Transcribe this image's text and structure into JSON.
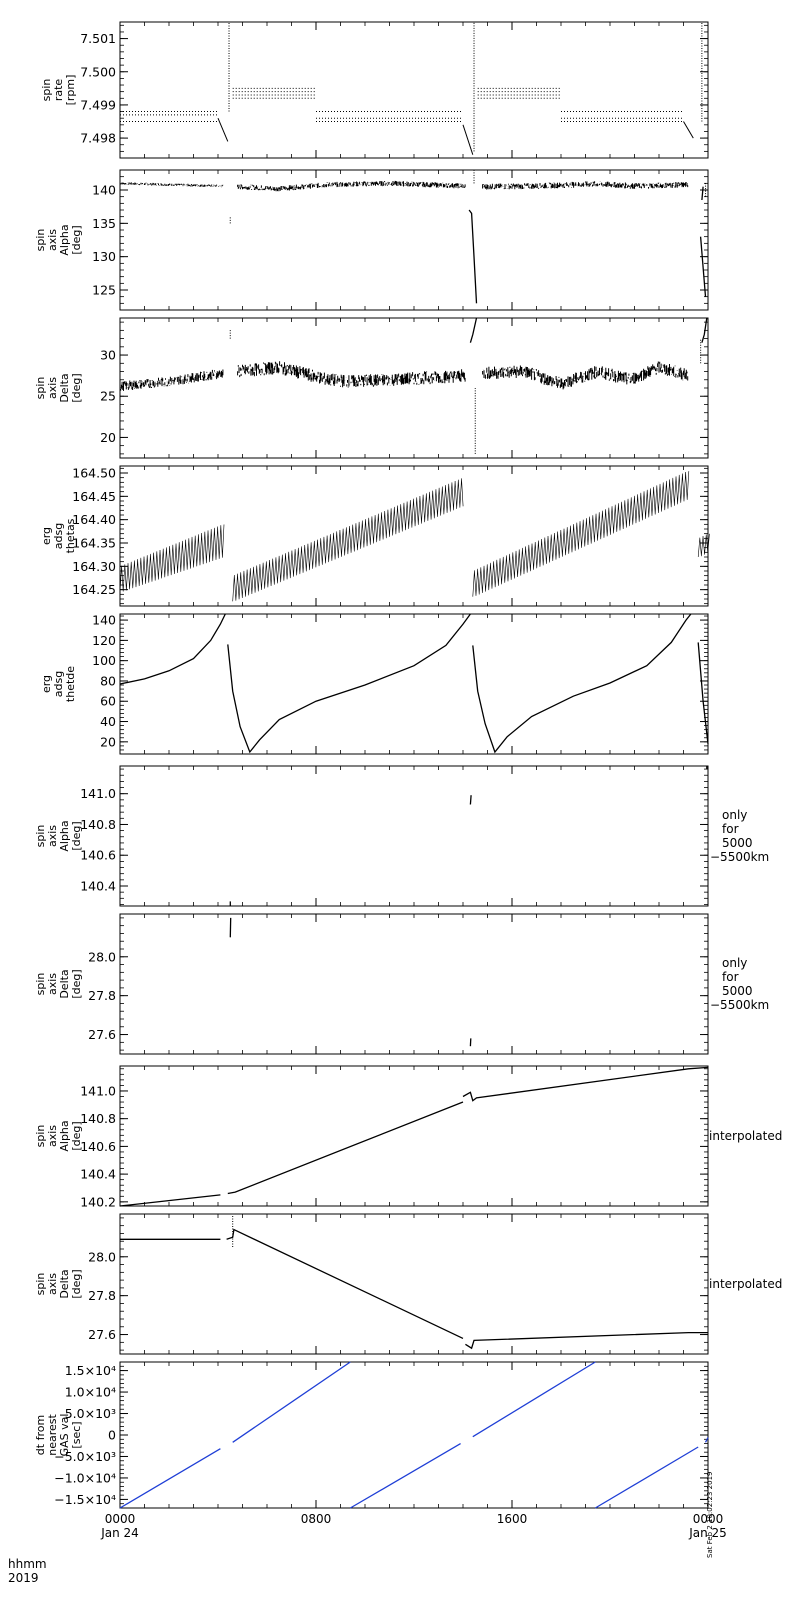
{
  "colors": {
    "trace": "#000000",
    "dt_trace": "#1f3fd6",
    "background": "#ffffff"
  },
  "x_axis": {
    "range_hours": [
      0,
      24
    ],
    "tick_hours": [
      0,
      8,
      16,
      24
    ],
    "labels_top": [
      "0000",
      "0800",
      "1600",
      "0000"
    ],
    "labels_bottom": [
      "Jan 24",
      "",
      "",
      "Jan 25"
    ],
    "corner_top": "hhmm",
    "corner_bottom": "2019",
    "minor_per_major": 8
  },
  "stamp": "Sat Feb  2 10:02:23 2019",
  "chart_data": [
    {
      "type": "scatter",
      "ylabel": [
        "spin",
        "rate",
        "[rpm]"
      ],
      "ylim": [
        7.4974,
        7.5015
      ],
      "yticks": [
        7.498,
        7.499,
        7.5,
        7.501
      ],
      "yticklabels": [
        "7.498",
        "7.499",
        "7.500",
        "7.501"
      ],
      "side_label": [],
      "style": "bands",
      "segments": [
        {
          "x": [
            0.0,
            4.0
          ],
          "levels": [
            7.4985,
            7.4987,
            7.4988
          ],
          "end": [
            [
              4.0,
              7.4986
            ],
            [
              4.4,
              7.4979
            ]
          ]
        },
        {
          "x": [
            4.6,
            8.0
          ],
          "levels": [
            7.4992,
            7.4993,
            7.4994,
            7.4995
          ]
        },
        {
          "x": [
            8.0,
            14.0
          ],
          "levels": [
            7.4985,
            7.4986,
            7.4988
          ],
          "end": [
            [
              14.0,
              7.4984
            ],
            [
              14.4,
              7.4975
            ]
          ]
        },
        {
          "x": [
            14.6,
            18.0
          ],
          "levels": [
            7.4992,
            7.4993,
            7.4994,
            7.4995
          ]
        },
        {
          "x": [
            18.0,
            23.0
          ],
          "levels": [
            7.4985,
            7.4986,
            7.4988
          ],
          "end": [
            [
              23.0,
              7.4985
            ],
            [
              23.4,
              7.498
            ]
          ]
        }
      ],
      "spikes": [
        [
          4.45,
          7.4988,
          7.5015
        ],
        [
          14.45,
          7.4976,
          7.5015
        ],
        [
          23.75,
          7.4985,
          7.5015
        ]
      ]
    },
    {
      "type": "scatter",
      "ylabel": [
        "spin",
        "axis",
        "Alpha",
        "[deg]"
      ],
      "ylim": [
        122,
        143
      ],
      "yticks": [
        125,
        130,
        135,
        140
      ],
      "yticklabels": [
        "125",
        "130",
        "135",
        "140"
      ],
      "side_label": [],
      "style": "noisy",
      "segments": [
        {
          "x": [
            0.0,
            4.2
          ],
          "y": [
            [
              0,
              141.0
            ],
            [
              2,
              140.8
            ],
            [
              4.2,
              140.6
            ]
          ],
          "noise": 0.4
        },
        {
          "x": [
            4.8,
            14.1
          ],
          "y": [
            [
              4.8,
              140.5
            ],
            [
              6.5,
              140.2
            ],
            [
              8.5,
              140.8
            ],
            [
              11,
              141.0
            ],
            [
              14.1,
              140.6
            ]
          ],
          "noise": 0.8
        },
        {
          "x": [
            14.8,
            23.2
          ],
          "y": [
            [
              14.8,
              140.5
            ],
            [
              17,
              140.6
            ],
            [
              19.5,
              140.9
            ],
            [
              21,
              140.6
            ],
            [
              23.2,
              140.8
            ]
          ],
          "noise": 0.9
        }
      ],
      "lines": [
        [
          [
            14.25,
            137.0
          ],
          [
            14.35,
            136.5
          ],
          [
            14.45,
            130.0
          ],
          [
            14.55,
            123.0
          ]
        ],
        [
          [
            23.7,
            133.0
          ],
          [
            23.9,
            124.0
          ]
        ],
        [
          [
            23.75,
            138.5
          ],
          [
            23.8,
            140.5
          ]
        ]
      ],
      "spikes": [
        [
          4.5,
          135.0,
          136.0
        ],
        [
          14.45,
          141.0,
          143.0
        ],
        [
          23.9,
          139.0,
          141.0
        ]
      ]
    },
    {
      "type": "scatter",
      "ylabel": [
        "spin",
        "axis",
        "Delta",
        "[deg]"
      ],
      "ylim": [
        17.5,
        34.5
      ],
      "yticks": [
        20,
        25,
        30
      ],
      "yticklabels": [
        "20",
        "25",
        "30"
      ],
      "side_label": [],
      "style": "noisy",
      "segments": [
        {
          "x": [
            0.0,
            4.2
          ],
          "y": [
            [
              0,
              26.2
            ],
            [
              2,
              26.8
            ],
            [
              4.2,
              27.8
            ]
          ],
          "noise": 1.2
        },
        {
          "x": [
            4.8,
            14.1
          ],
          "y": [
            [
              4.8,
              28.0
            ],
            [
              6.5,
              28.5
            ],
            [
              8.5,
              27.0
            ],
            [
              9.5,
              26.8
            ],
            [
              11,
              27.0
            ],
            [
              14.1,
              27.5
            ]
          ],
          "noise": 1.6
        },
        {
          "x": [
            14.8,
            23.2
          ],
          "y": [
            [
              14.8,
              27.8
            ],
            [
              16.5,
              28.0
            ],
            [
              18,
              26.5
            ],
            [
              19.5,
              28.0
            ],
            [
              20.8,
              27.0
            ],
            [
              22,
              28.5
            ],
            [
              23.2,
              27.5
            ]
          ],
          "noise": 1.6
        }
      ],
      "lines": [
        [
          [
            14.3,
            31.5
          ],
          [
            14.4,
            32.5
          ],
          [
            14.55,
            34.5
          ]
        ],
        [
          [
            23.75,
            31.5
          ],
          [
            23.85,
            32.5
          ],
          [
            23.95,
            34.5
          ]
        ]
      ],
      "spikes": [
        [
          4.5,
          32.0,
          33.2
        ],
        [
          14.5,
          18.0,
          26.0
        ],
        [
          23.7,
          29.0,
          32.0
        ]
      ]
    },
    {
      "type": "scatter",
      "ylabel": [
        "erg",
        "adsg",
        "thetas"
      ],
      "ylim": [
        164.215,
        164.515
      ],
      "yticks": [
        164.25,
        164.3,
        164.35,
        164.4,
        164.45,
        164.5
      ],
      "yticklabels": [
        "164.25",
        "164.30",
        "164.35",
        "164.40",
        "164.45",
        "164.50"
      ],
      "side_label": [],
      "style": "sawband",
      "segments": [
        {
          "x": [
            0.0,
            4.2
          ],
          "low": [
            164.245,
            164.32
          ],
          "high": [
            164.3,
            164.39
          ]
        },
        {
          "x": [
            4.6,
            14.0
          ],
          "low": [
            164.225,
            164.43
          ],
          "high": [
            164.28,
            164.49
          ]
        },
        {
          "x": [
            14.4,
            23.2
          ],
          "low": [
            164.235,
            164.445
          ],
          "high": [
            164.29,
            164.505
          ]
        },
        {
          "x": [
            23.6,
            24.0
          ],
          "low": [
            164.32,
            164.33
          ],
          "high": [
            164.36,
            164.37
          ]
        }
      ]
    },
    {
      "type": "line",
      "ylabel": [
        "erg",
        "adsg",
        "thetde"
      ],
      "ylim": [
        8,
        146
      ],
      "yticks": [
        20,
        40,
        60,
        80,
        100,
        120,
        140
      ],
      "yticklabels": [
        "20",
        "40",
        "60",
        "80",
        "100",
        "120",
        "140"
      ],
      "side_label": [],
      "style": "curve",
      "lines": [
        [
          [
            0,
            77
          ],
          [
            1,
            82
          ],
          [
            2,
            90
          ],
          [
            3,
            102
          ],
          [
            3.7,
            120
          ],
          [
            4.1,
            136
          ],
          [
            4.3,
            146
          ]
        ],
        [
          [
            4.4,
            116
          ],
          [
            4.6,
            70
          ],
          [
            4.9,
            35
          ],
          [
            5.3,
            10
          ],
          [
            5.7,
            22
          ],
          [
            6.5,
            42
          ],
          [
            8.0,
            60
          ],
          [
            10,
            76
          ],
          [
            12,
            95
          ],
          [
            13.3,
            115
          ],
          [
            14.0,
            136
          ],
          [
            14.3,
            146
          ]
        ],
        [
          [
            14.4,
            115
          ],
          [
            14.6,
            70
          ],
          [
            14.9,
            38
          ],
          [
            15.3,
            10
          ],
          [
            15.8,
            25
          ],
          [
            16.8,
            45
          ],
          [
            18.5,
            65
          ],
          [
            20,
            78
          ],
          [
            21.5,
            95
          ],
          [
            22.5,
            118
          ],
          [
            23.1,
            140
          ],
          [
            23.3,
            146
          ]
        ],
        [
          [
            23.6,
            118
          ],
          [
            23.8,
            60
          ],
          [
            24.0,
            18
          ]
        ]
      ]
    },
    {
      "type": "scatter",
      "ylabel": [
        "spin",
        "axis",
        "Alpha",
        "[deg]"
      ],
      "ylim": [
        140.27,
        141.18
      ],
      "yticks": [
        140.4,
        140.6,
        140.8,
        141.0
      ],
      "yticklabels": [
        "140.4",
        "140.6",
        "140.8",
        "141.0"
      ],
      "side_label": [
        "only",
        "for",
        "5000",
        "−5500km"
      ],
      "style": "sparse",
      "lines": [
        [
          [
            4.5,
            140.27
          ],
          [
            4.5,
            140.3
          ]
        ],
        [
          [
            14.3,
            140.93
          ],
          [
            14.33,
            140.99
          ]
        ],
        [
          [
            23.95,
            141.16
          ],
          [
            23.95,
            141.18
          ]
        ]
      ]
    },
    {
      "type": "scatter",
      "ylabel": [
        "spin",
        "axis",
        "Delta",
        "[deg]"
      ],
      "ylim": [
        27.5,
        28.22
      ],
      "yticks": [
        27.6,
        27.8,
        28.0
      ],
      "yticklabels": [
        "27.6",
        "27.8",
        "28.0"
      ],
      "side_label": [
        "only",
        "for",
        "5000",
        "−5500km"
      ],
      "style": "sparse",
      "lines": [
        [
          [
            4.5,
            28.1
          ],
          [
            4.52,
            28.2
          ]
        ],
        [
          [
            14.3,
            27.54
          ],
          [
            14.32,
            27.58
          ]
        ]
      ]
    },
    {
      "type": "line",
      "ylabel": [
        "spin",
        "axis",
        "Alpha",
        "[deg]"
      ],
      "ylim": [
        140.17,
        141.18
      ],
      "yticks": [
        140.2,
        140.4,
        140.6,
        140.8,
        141.0
      ],
      "yticklabels": [
        "140.2",
        "140.4",
        "140.6",
        "140.8",
        "141.0"
      ],
      "side_label": [
        "interpolated"
      ],
      "style": "curve",
      "lines": [
        [
          [
            0,
            140.17
          ],
          [
            4.1,
            140.25
          ]
        ],
        [
          [
            4.4,
            140.26
          ],
          [
            4.7,
            140.27
          ],
          [
            14.0,
            140.92
          ]
        ],
        [
          [
            14.0,
            140.96
          ],
          [
            14.3,
            140.99
          ],
          [
            14.4,
            140.93
          ],
          [
            14.55,
            140.95
          ],
          [
            23.2,
            141.16
          ],
          [
            24,
            141.17
          ]
        ]
      ]
    },
    {
      "type": "line",
      "ylabel": [
        "spin",
        "axis",
        "Delta",
        "[deg]"
      ],
      "ylim": [
        27.5,
        28.22
      ],
      "yticks": [
        27.6,
        27.8,
        28.0
      ],
      "yticklabels": [
        "27.6",
        "27.8",
        "28.0"
      ],
      "side_label": [
        "interpolated"
      ],
      "style": "curve",
      "lines": [
        [
          [
            0,
            28.09
          ],
          [
            4.1,
            28.09
          ]
        ],
        [
          [
            4.35,
            28.09
          ],
          [
            4.6,
            28.1
          ],
          [
            4.65,
            28.14
          ],
          [
            14.0,
            27.58
          ]
        ],
        [
          [
            14.1,
            27.55
          ],
          [
            14.35,
            27.53
          ],
          [
            14.45,
            27.57
          ],
          [
            23.2,
            27.61
          ],
          [
            24,
            27.61
          ]
        ]
      ],
      "spikes": [
        [
          4.6,
          28.05,
          28.22
        ]
      ]
    },
    {
      "type": "line",
      "ylabel": [
        "dt from",
        "nearest",
        "GAS val",
        "[sec]"
      ],
      "ylim": [
        -17000,
        17000
      ],
      "yticks": [
        -15000,
        -10000,
        -5000,
        0,
        5000,
        10000,
        15000
      ],
      "yticklabels": [
        "−1.5×10⁴",
        "−1.0×10⁴",
        "−5.0×10³",
        "0",
        "5.0×10³",
        "1.0×10⁴",
        "1.5×10⁴"
      ],
      "side_label": [],
      "style": "dt",
      "lines": [
        [
          [
            0,
            -17000
          ],
          [
            4.1,
            -3200
          ]
        ],
        [
          [
            4.6,
            -1700
          ],
          [
            9.4,
            17000
          ]
        ],
        [
          [
            9.4,
            -17000
          ],
          [
            13.9,
            -2000
          ]
        ],
        [
          [
            14.4,
            -400
          ],
          [
            19.4,
            17000
          ]
        ],
        [
          [
            19.4,
            -17000
          ],
          [
            23.6,
            -2800
          ]
        ],
        [
          [
            23.9,
            -1700
          ],
          [
            24.0,
            -600
          ]
        ]
      ]
    }
  ]
}
